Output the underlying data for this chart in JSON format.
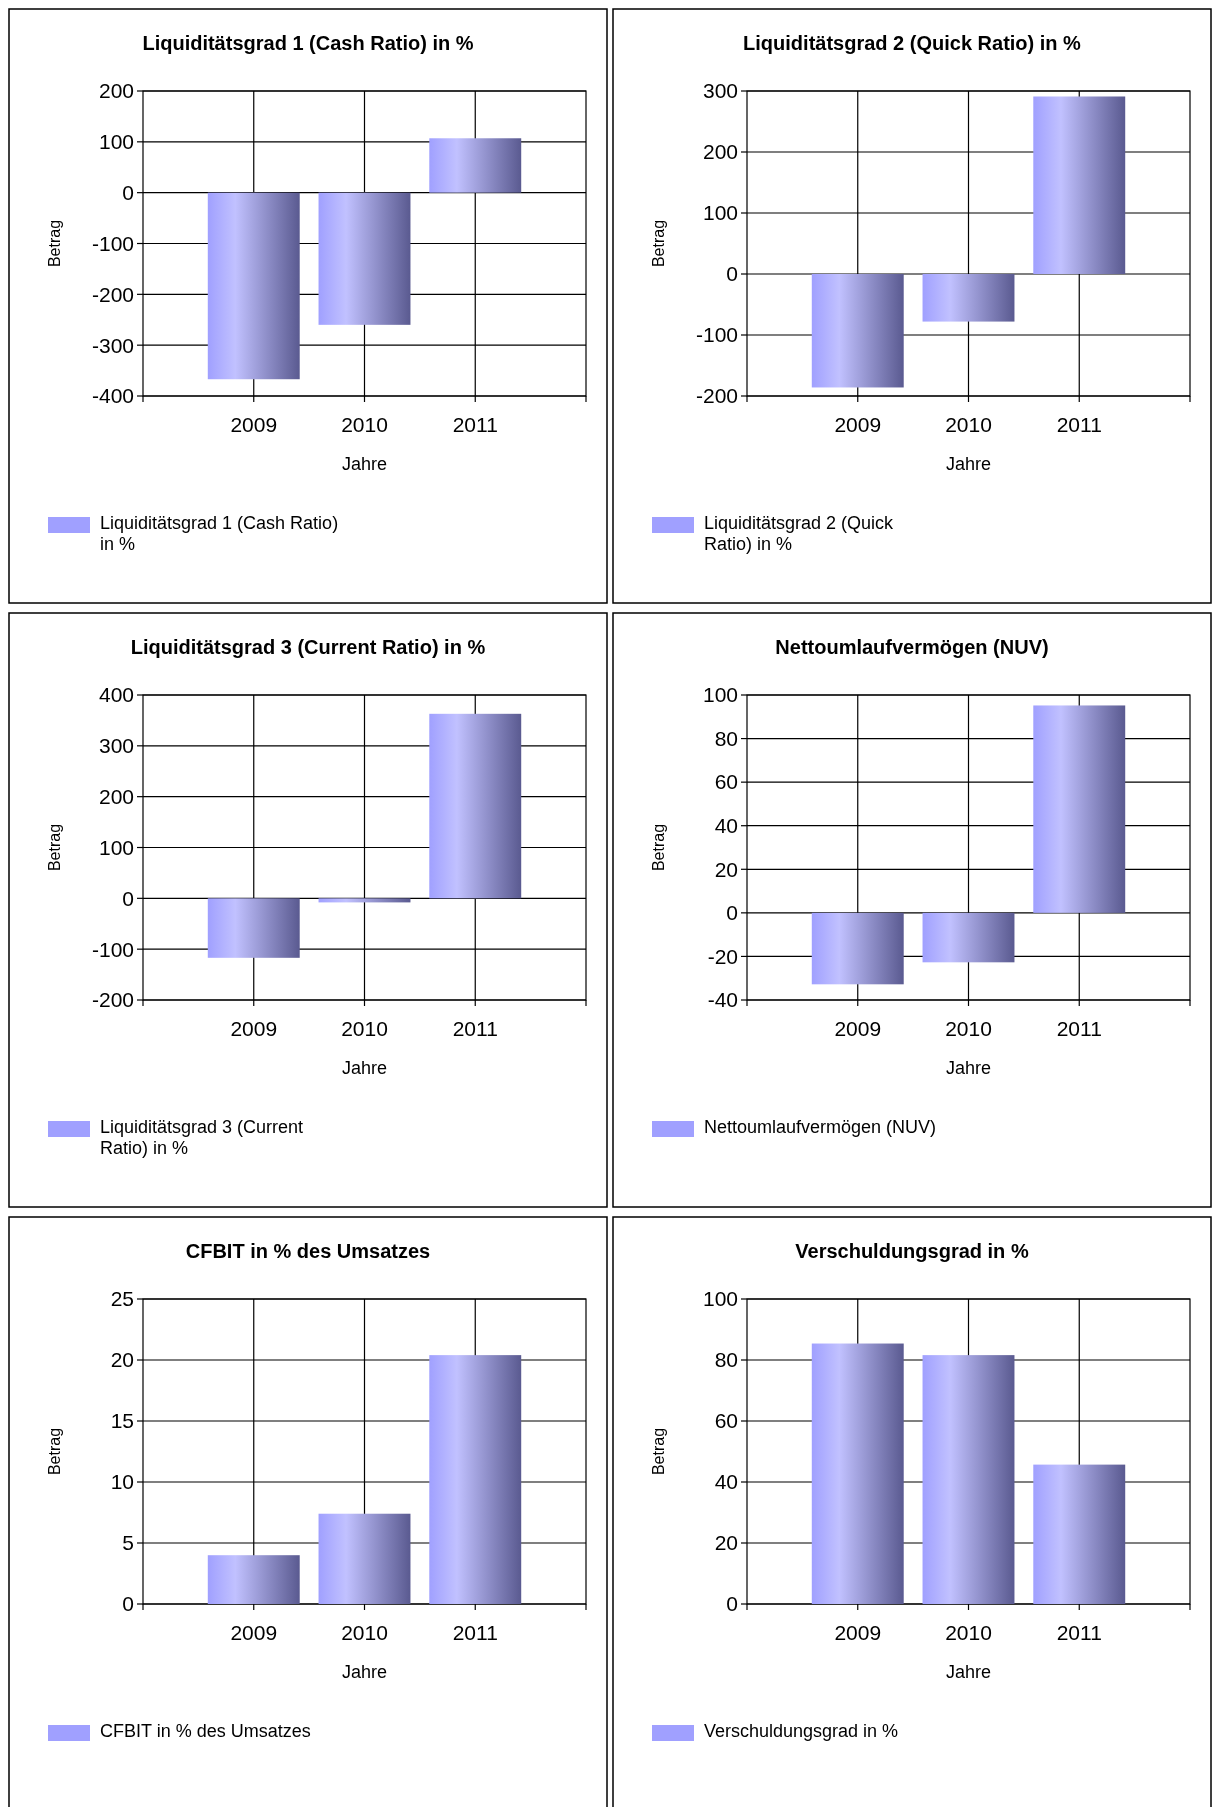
{
  "chart_data": [
    {
      "type": "bar",
      "title": "Liquiditätsgrad 1 (Cash Ratio) in %",
      "xlabel": "Jahre",
      "ylabel": "Betrag",
      "categories": [
        "2009",
        "2010",
        "2011"
      ],
      "ylim": [
        -400,
        200
      ],
      "yticks": [
        -400,
        -300,
        -200,
        -100,
        0,
        100,
        200
      ],
      "grid": true,
      "legend": "bottom left",
      "series": [
        {
          "name": "Liquiditätsgrad 1 (Cash Ratio) in %",
          "color": "#a0a0ff",
          "values": [
            -367,
            -260,
            107
          ]
        }
      ]
    },
    {
      "type": "bar",
      "title": "Liquiditätsgrad 2 (Quick Ratio) in %",
      "xlabel": "Jahre",
      "ylabel": "Betrag",
      "categories": [
        "2009",
        "2010",
        "2011"
      ],
      "ylim": [
        -200,
        300
      ],
      "yticks": [
        -200,
        -100,
        0,
        100,
        200,
        300
      ],
      "grid": true,
      "legend": "bottom left",
      "series": [
        {
          "name": "Liquiditätsgrad 2 (Quick Ratio) in %",
          "color": "#a0a0ff",
          "values": [
            -186,
            -78,
            291
          ]
        }
      ]
    },
    {
      "type": "bar",
      "title": "Liquiditätsgrad 3 (Current Ratio) in %",
      "xlabel": "Jahre",
      "ylabel": "Betrag",
      "categories": [
        "2009",
        "2010",
        "2011"
      ],
      "ylim": [
        -200,
        400
      ],
      "yticks": [
        -200,
        -100,
        0,
        100,
        200,
        300,
        400
      ],
      "grid": true,
      "legend": "bottom left",
      "series": [
        {
          "name": "Liquiditätsgrad 3 (Current Ratio) in %",
          "color": "#a0a0ff",
          "values": [
            -117,
            -8,
            363
          ]
        }
      ]
    },
    {
      "type": "bar",
      "title": "Nettoumlaufvermögen (NUV)",
      "xlabel": "Jahre",
      "ylabel": "Betrag",
      "categories": [
        "2009",
        "2010",
        "2011"
      ],
      "ylim": [
        -40,
        100
      ],
      "yticks": [
        -40,
        -20,
        0,
        20,
        40,
        60,
        80,
        100
      ],
      "grid": true,
      "legend": "bottom left",
      "series": [
        {
          "name": "Nettoumlaufvermögen (NUV)",
          "color": "#a0a0ff",
          "values": [
            -32.8,
            -22.7,
            95.2
          ]
        }
      ]
    },
    {
      "type": "bar",
      "title": "CFBIT in % des Umsatzes",
      "xlabel": "Jahre",
      "ylabel": "Betrag",
      "categories": [
        "2009",
        "2010",
        "2011"
      ],
      "ylim": [
        0,
        25
      ],
      "yticks": [
        0,
        5,
        10,
        15,
        20,
        25
      ],
      "grid": true,
      "legend": "bottom left",
      "series": [
        {
          "name": "CFBIT in % des Umsatzes",
          "color": "#a0a0ff",
          "values": [
            4.0,
            7.4,
            20.4
          ]
        }
      ]
    },
    {
      "type": "bar",
      "title": "Verschuldungsgrad in %",
      "xlabel": "Jahre",
      "ylabel": "Betrag",
      "categories": [
        "2009",
        "2010",
        "2011"
      ],
      "ylim": [
        0,
        100
      ],
      "yticks": [
        0,
        20,
        40,
        60,
        80,
        100
      ],
      "grid": true,
      "legend": "bottom left",
      "series": [
        {
          "name": "Verschuldungsgrad in %",
          "color": "#a0a0ff",
          "values": [
            85.4,
            81.6,
            45.7
          ]
        }
      ]
    }
  ]
}
